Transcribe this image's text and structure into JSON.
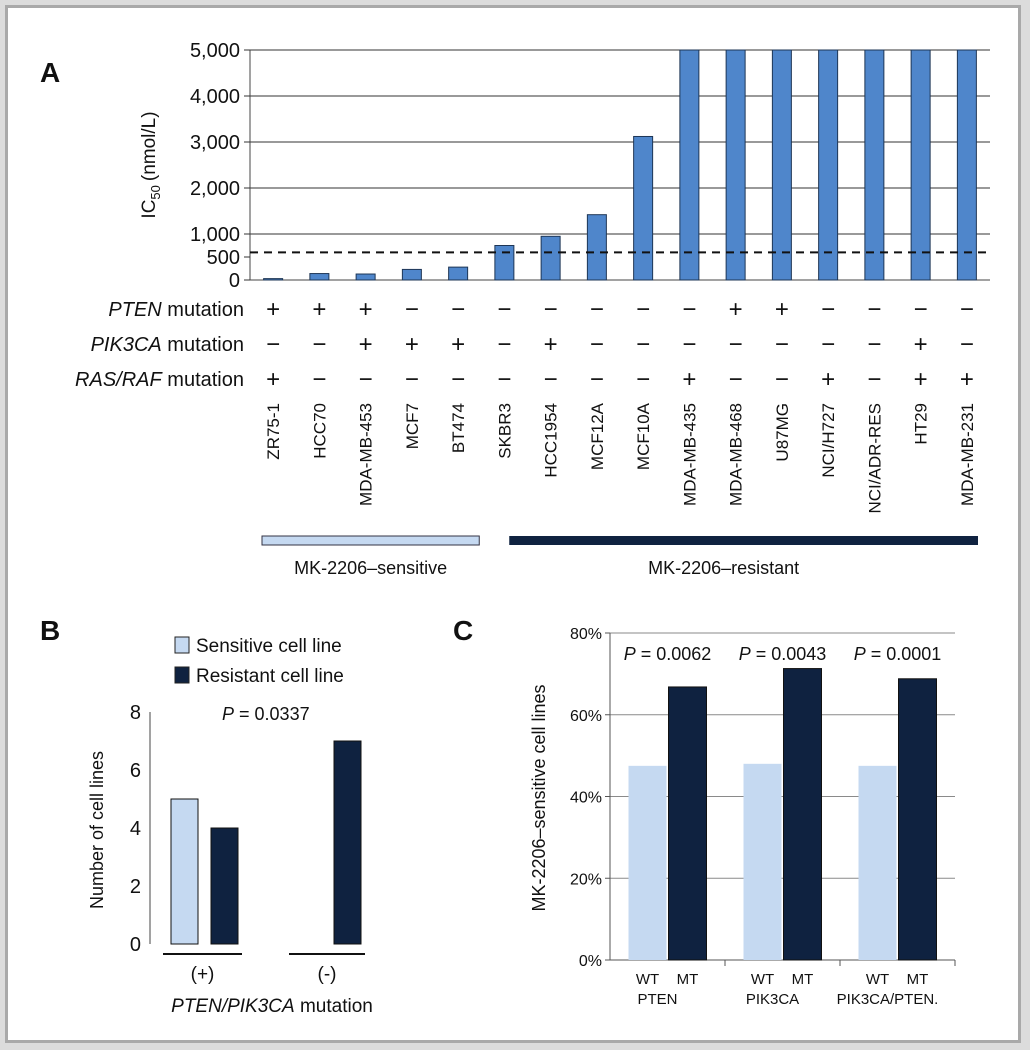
{
  "colors": {
    "sensitive": "#c5d9f1",
    "resistant": "#0f2240",
    "panelA_bar": "#4f86cb",
    "panelA_bar_edge": "#1e3656",
    "border": "#a9a9a9"
  },
  "chart_data": [
    {
      "panel": "A",
      "type": "bar",
      "title": "",
      "ylabel": "IC50 (nmol/L)",
      "ylabel_main": "IC",
      "ylabel_sub": "50",
      "ylabel_unit": "(nmol/L)",
      "ylim": [
        0,
        5000
      ],
      "yticks": [
        0,
        500,
        1000,
        2000,
        3000,
        4000,
        5000
      ],
      "ytick_labels": [
        "0",
        "500",
        "1,000",
        "2,000",
        "3,000",
        "4,000",
        "5,000"
      ],
      "grid": true,
      "reference_line": 600,
      "categories": [
        "ZR75-1",
        "HCC70",
        "MDA-MB-453",
        "MCF7",
        "BT474",
        "SKBR3",
        "HCC1954",
        "MCF12A",
        "MCF10A",
        "MDA-MB-435",
        "MDA-MB-468",
        "U87MG",
        "NCI/H727",
        "NCI/ADR-RES",
        "HT29",
        "MDA-MB-231"
      ],
      "values": [
        30,
        140,
        130,
        230,
        280,
        750,
        950,
        1420,
        3120,
        5000,
        5000,
        5000,
        5000,
        5000,
        5000,
        5000
      ],
      "mutation_rows": [
        {
          "label_italic": "PTEN",
          "label_rest": " mutation",
          "marks": [
            "+",
            "+",
            "+",
            "−",
            "−",
            "−",
            "−",
            "−",
            "−",
            "−",
            "+",
            "+",
            "−",
            "−",
            "−",
            "−"
          ]
        },
        {
          "label_italic": "PIK3CA",
          "label_rest": " mutation",
          "marks": [
            "−",
            "−",
            "+",
            "+",
            "+",
            "−",
            "+",
            "−",
            "−",
            "−",
            "−",
            "−",
            "−",
            "−",
            "+",
            "−"
          ]
        },
        {
          "label_italic": "RAS/RAF",
          "label_rest": " mutation",
          "marks": [
            "+",
            "−",
            "−",
            "−",
            "−",
            "−",
            "−",
            "−",
            "−",
            "+",
            "−",
            "−",
            "+",
            "−",
            "+",
            "+"
          ]
        }
      ],
      "groups": [
        {
          "name": "MK-2206–sensitive",
          "count": 5
        },
        {
          "name": "MK-2206–resistant",
          "count": 11
        }
      ]
    },
    {
      "panel": "B",
      "type": "bar",
      "ylabel": "Number of cell lines",
      "ylim": [
        0,
        8
      ],
      "yticks": [
        0,
        2,
        4,
        6,
        8
      ],
      "ytick_labels": [
        "0",
        "2",
        "4",
        "6",
        "8"
      ],
      "grid": false,
      "p_value_prefix": "P",
      "p_value_text": " = 0.0337",
      "categories": [
        "(+)",
        "(-)"
      ],
      "xlabel_italic": "PTEN/PIK3CA",
      "xlabel_rest": " mutation",
      "series": [
        {
          "name": "Sensitive cell line",
          "values": [
            5,
            0
          ]
        },
        {
          "name": "Resistant cell line",
          "values": [
            4,
            7
          ]
        }
      ],
      "legend_position": "top"
    },
    {
      "panel": "C",
      "type": "bar",
      "ylabel": "MK-2206–sensitive cell lines",
      "ylim": [
        0,
        80
      ],
      "yticks": [
        0,
        20,
        40,
        60,
        80
      ],
      "ytick_labels": [
        "0%",
        "20%",
        "40%",
        "60%",
        "80%"
      ],
      "grid": true,
      "categories": [
        "PTEN",
        "PIK3CA",
        "PIK3CA/PTEN"
      ],
      "category_labels_drawn": [
        "PTEN",
        "PIK3CA",
        "PIK3CA/PTEN."
      ],
      "subcategories": [
        "WT",
        "MT"
      ],
      "series": [
        {
          "name": "WT",
          "values": [
            47.5,
            48,
            47.5
          ]
        },
        {
          "name": "MT",
          "values": [
            66.8,
            71.3,
            68.8
          ]
        }
      ],
      "p_values": [
        {
          "prefix": "P",
          "text": " = 0.0062"
        },
        {
          "prefix": "P",
          "text": " = 0.0043"
        },
        {
          "prefix": "P",
          "text": " = 0.0001"
        }
      ]
    }
  ]
}
